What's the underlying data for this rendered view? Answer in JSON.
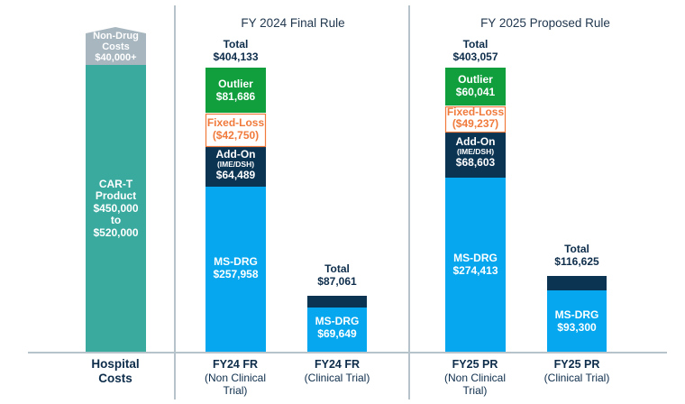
{
  "colors": {
    "teal": "#3aaa9f",
    "grey_cap": "#a7b6bf",
    "green": "#119f3e",
    "orange": "#f07a3b",
    "navy": "#0b3352",
    "blue": "#06a7ee",
    "axis": "#b7c3cb",
    "text_dark": "#0d2d4b"
  },
  "chart_data": {
    "type": "bar",
    "stacked": true,
    "title": "",
    "group_headers": [
      "FY 2024 Final Rule",
      "FY 2025 Proposed Rule"
    ],
    "categories": [
      {
        "line1": "Hospital",
        "line2": "Costs",
        "line3": ""
      },
      {
        "line1": "FY24 FR",
        "line2": "(Non Clinical",
        "line3": "Trial)"
      },
      {
        "line1": "FY24 FR",
        "line2": "(Clinical Trial)",
        "line3": ""
      },
      {
        "line1": "FY25 PR",
        "line2": "(Non Clinical",
        "line3": "Trial)"
      },
      {
        "line1": "FY25 PR",
        "line2": "(Clinical Trial)",
        "line3": ""
      }
    ],
    "hospital_costs": {
      "product": {
        "label1": "CAR-T",
        "label2": "Product",
        "label3": "$450,000",
        "label4": "to",
        "label5": "$520,000",
        "value_low": 450000,
        "value_high": 520000
      },
      "non_drug": {
        "label1": "Non-Drug",
        "label2": "Costs",
        "label3": "$40,000+",
        "value": 40000
      }
    },
    "bars": [
      {
        "total_label": "Total",
        "total_value": "$404,133",
        "total": 404133,
        "ms_drg": {
          "label": "MS-DRG",
          "value_text": "$257,958",
          "value": 257958
        },
        "add_on": {
          "label": "Add-On",
          "sublabel": "(IME/DSH)",
          "value_text": "$64,489",
          "value": 64489
        },
        "fixed_loss": {
          "label": "Fixed-Loss",
          "value_text": "($42,750)",
          "value": -42750
        },
        "outlier": {
          "label": "Outlier",
          "value_text": "$81,686",
          "value": 81686
        }
      },
      {
        "total_label": "Total",
        "total_value": "$87,061",
        "total": 87061,
        "ms_drg": {
          "label": "MS-DRG",
          "value_text": "$69,649",
          "value": 69649
        },
        "add_on_value": 17412
      },
      {
        "total_label": "Total",
        "total_value": "$403,057",
        "total": 403057,
        "ms_drg": {
          "label": "MS-DRG",
          "value_text": "$274,413",
          "value": 274413
        },
        "add_on": {
          "label": "Add-On",
          "sublabel": "(IME/DSH)",
          "value_text": "$68,603",
          "value": 68603
        },
        "fixed_loss": {
          "label": "Fixed-Loss",
          "value_text": "($49,237)",
          "value": -49237
        },
        "outlier": {
          "label": "Outlier",
          "value_text": "$60,041",
          "value": 60041
        }
      },
      {
        "total_label": "Total",
        "total_value": "$116,625",
        "total": 116625,
        "ms_drg": {
          "label": "MS-DRG",
          "value_text": "$93,300",
          "value": 93300
        },
        "add_on_value": 23325
      }
    ],
    "grid": false,
    "legend": "none"
  }
}
